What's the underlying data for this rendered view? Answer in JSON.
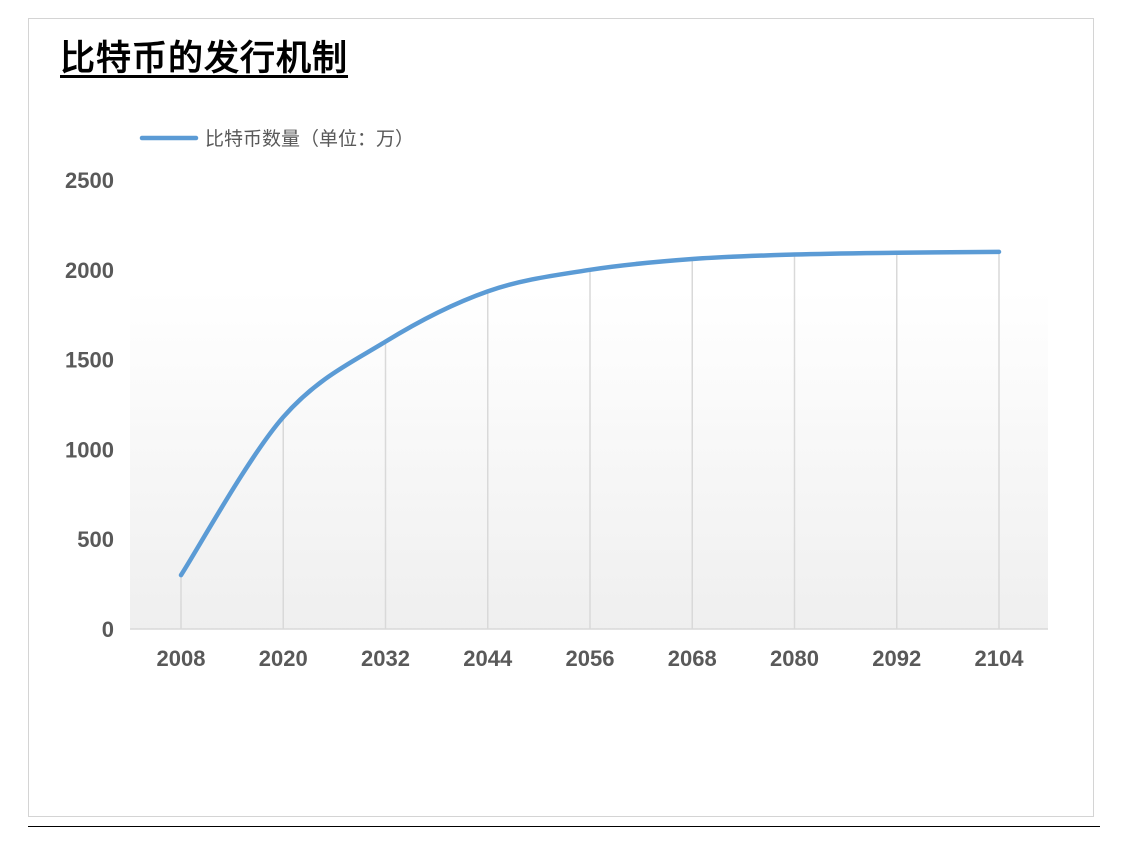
{
  "title": "比特币的发行机制",
  "chart_data": {
    "type": "line",
    "title": "比特币的发行机制",
    "xlabel": "",
    "ylabel": "",
    "categories": [
      "2008",
      "2020",
      "2032",
      "2044",
      "2056",
      "2068",
      "2080",
      "2092",
      "2104"
    ],
    "series": [
      {
        "name": "比特币数量（单位：万）",
        "values": [
          300,
          1180,
          1600,
          1880,
          2000,
          2060,
          2085,
          2095,
          2100
        ],
        "color": "#5b9bd5"
      }
    ],
    "ylim": [
      0,
      2500
    ],
    "yticks": [
      "0",
      "500",
      "1000",
      "1500",
      "2000",
      "2500"
    ],
    "grid": "vertical",
    "legend_position": "top-left",
    "smooth": true
  }
}
